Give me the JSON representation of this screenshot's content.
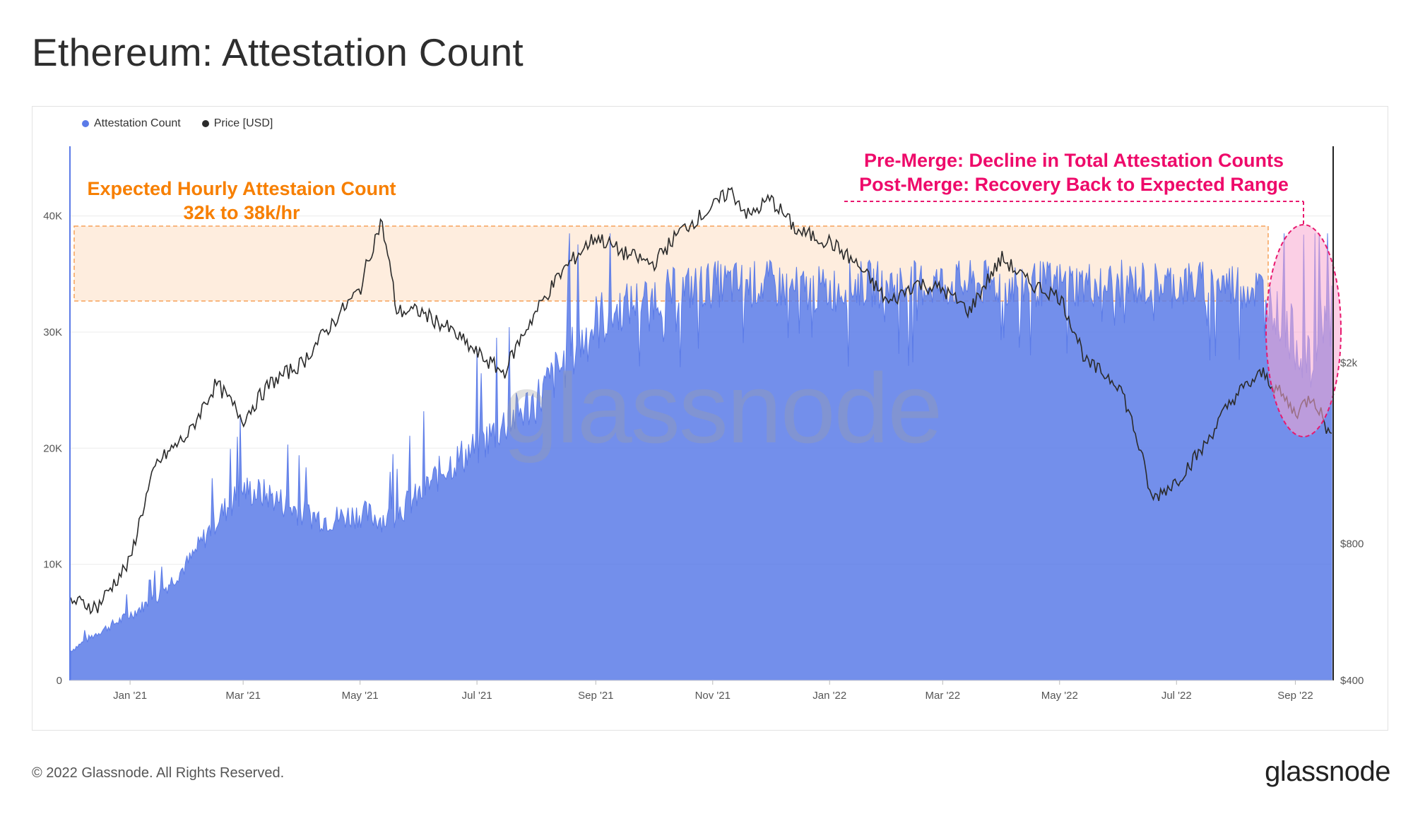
{
  "title": "Ethereum: Attestation Count",
  "footer": "© 2022 Glassnode. All Rights Reserved.",
  "brand": "glassnode",
  "watermark": "glassnode",
  "legend": [
    {
      "label": "Attestation Count",
      "color": "#5b7be8"
    },
    {
      "label": "Price [USD]",
      "color": "#2b2b2b"
    }
  ],
  "annotations": {
    "expected_line1": "Expected Hourly Attestaion Count",
    "expected_line2": "32k to 38k/hr",
    "merge_line1": "Pre-Merge: Decline in Total Attestation Counts",
    "merge_line2": "Post-Merge: Recovery Back to Expected Range"
  },
  "chart_data": {
    "type": "area",
    "x_ticks": [
      "Jan '21",
      "Mar '21",
      "May '21",
      "Jul '21",
      "Sep '21",
      "Nov '21",
      "Jan '22",
      "Mar '22",
      "May '22",
      "Jul '22",
      "Sep '22"
    ],
    "y_left_ticks": [
      "0",
      "10K",
      "20K",
      "30K",
      "40K"
    ],
    "y_left_range": [
      0,
      46000
    ],
    "y_right_ticks": [
      "$400",
      "$800",
      "$2k"
    ],
    "y_right_scale": "log",
    "expected_band": [
      32000,
      38000
    ],
    "series": [
      {
        "name": "Attestation Count",
        "points": [
          [
            "2020-12-01",
            2500
          ],
          [
            "2020-12-15",
            4000
          ],
          [
            "2021-01-01",
            5500
          ],
          [
            "2021-01-15",
            7000
          ],
          [
            "2021-02-01",
            10000
          ],
          [
            "2021-02-15",
            13500
          ],
          [
            "2021-03-01",
            16000
          ],
          [
            "2021-03-15",
            15500
          ],
          [
            "2021-04-01",
            14000
          ],
          [
            "2021-04-15",
            13500
          ],
          [
            "2021-05-01",
            14000
          ],
          [
            "2021-05-15",
            13500
          ],
          [
            "2021-06-01",
            15500
          ],
          [
            "2021-06-15",
            18000
          ],
          [
            "2021-07-01",
            19500
          ],
          [
            "2021-07-15",
            21500
          ],
          [
            "2021-08-01",
            23500
          ],
          [
            "2021-08-15",
            26500
          ],
          [
            "2021-09-01",
            30000
          ],
          [
            "2021-09-15",
            31500
          ],
          [
            "2021-10-01",
            32500
          ],
          [
            "2021-10-15",
            33000
          ],
          [
            "2021-11-01",
            33500
          ],
          [
            "2021-11-15",
            33500
          ],
          [
            "2021-12-01",
            33500
          ],
          [
            "2021-12-15",
            33000
          ],
          [
            "2022-01-01",
            33000
          ],
          [
            "2022-01-15",
            33500
          ],
          [
            "2022-02-01",
            33500
          ],
          [
            "2022-02-15",
            33500
          ],
          [
            "2022-03-01",
            33500
          ],
          [
            "2022-03-15",
            33500
          ],
          [
            "2022-04-01",
            33500
          ],
          [
            "2022-04-15",
            33500
          ],
          [
            "2022-05-01",
            33500
          ],
          [
            "2022-05-15",
            33500
          ],
          [
            "2022-06-01",
            33500
          ],
          [
            "2022-06-15",
            33500
          ],
          [
            "2022-07-01",
            33500
          ],
          [
            "2022-07-15",
            33500
          ],
          [
            "2022-08-01",
            33500
          ],
          [
            "2022-08-15",
            33000
          ],
          [
            "2022-09-01",
            28500
          ],
          [
            "2022-09-10",
            26000
          ],
          [
            "2022-09-15",
            31000
          ],
          [
            "2022-09-20",
            30500
          ]
        ]
      },
      {
        "name": "Price [USD]",
        "points": [
          [
            "2020-12-01",
            600
          ],
          [
            "2020-12-15",
            580
          ],
          [
            "2021-01-01",
            730
          ],
          [
            "2021-01-15",
            1200
          ],
          [
            "2021-02-01",
            1400
          ],
          [
            "2021-02-15",
            1800
          ],
          [
            "2021-03-01",
            1500
          ],
          [
            "2021-03-15",
            1800
          ],
          [
            "2021-04-01",
            2000
          ],
          [
            "2021-04-15",
            2400
          ],
          [
            "2021-05-01",
            2900
          ],
          [
            "2021-05-12",
            4100
          ],
          [
            "2021-05-20",
            2600
          ],
          [
            "2021-06-01",
            2600
          ],
          [
            "2021-06-15",
            2400
          ],
          [
            "2021-07-01",
            2100
          ],
          [
            "2021-07-15",
            1900
          ],
          [
            "2021-08-01",
            2600
          ],
          [
            "2021-08-15",
            3200
          ],
          [
            "2021-09-01",
            3800
          ],
          [
            "2021-09-15",
            3500
          ],
          [
            "2021-10-01",
            3300
          ],
          [
            "2021-10-15",
            3900
          ],
          [
            "2021-11-01",
            4400
          ],
          [
            "2021-11-10",
            4800
          ],
          [
            "2021-11-20",
            4200
          ],
          [
            "2021-12-01",
            4600
          ],
          [
            "2021-12-15",
            3900
          ],
          [
            "2022-01-01",
            3700
          ],
          [
            "2022-01-15",
            3300
          ],
          [
            "2022-02-01",
            2700
          ],
          [
            "2022-02-15",
            3000
          ],
          [
            "2022-03-01",
            2900
          ],
          [
            "2022-03-15",
            2600
          ],
          [
            "2022-04-01",
            3400
          ],
          [
            "2022-04-15",
            3000
          ],
          [
            "2022-05-01",
            2800
          ],
          [
            "2022-05-15",
            2000
          ],
          [
            "2022-06-01",
            1800
          ],
          [
            "2022-06-18",
            1000
          ],
          [
            "2022-07-01",
            1100
          ],
          [
            "2022-07-15",
            1300
          ],
          [
            "2022-08-01",
            1700
          ],
          [
            "2022-08-15",
            1900
          ],
          [
            "2022-09-01",
            1550
          ],
          [
            "2022-09-10",
            1700
          ],
          [
            "2022-09-20",
            1350
          ]
        ]
      }
    ]
  }
}
